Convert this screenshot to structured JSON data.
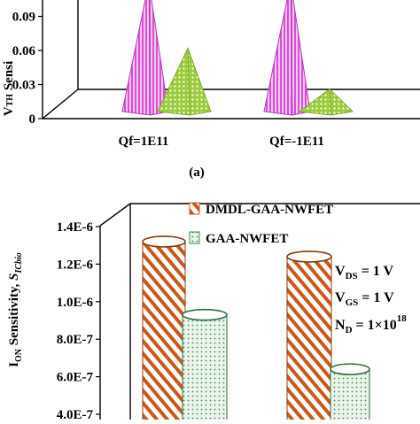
{
  "chart_data": [
    {
      "type": "bar",
      "style": "3d-pyramid",
      "panel_label": "(a)",
      "ylabel": "V_TH Sensitivity",
      "ylabel_visible_text": "V",
      "ylabel_subscript": "TH",
      "ylabel_tail": " Sensi",
      "categories": [
        "Qf=1E11",
        "Qf=-1E11"
      ],
      "yticks": [
        "0",
        "0.03",
        "0.06",
        "0.09"
      ],
      "ylim": [
        0,
        0.12
      ],
      "grid": false,
      "series": [
        {
          "color": "#d94fd6",
          "pattern": "vertical-stripes",
          "values": [
            0.12,
            0.12
          ]
        },
        {
          "color": "#9ccc3c",
          "pattern": "dots",
          "values": [
            0.062,
            0.026
          ]
        }
      ]
    },
    {
      "type": "bar",
      "style": "3d-cylinder",
      "ylabel_parts": {
        "main": "I",
        "sub": "ON",
        "mid": " Sensitivity, ",
        "italic": "S",
        "italic_sub": "ICbio"
      },
      "yticks": [
        "4.0E-7",
        "6.0E-7",
        "8.0E-7",
        "1.0E-6",
        "1.2E-6",
        "1.4E-6"
      ],
      "ylim": [
        4e-07,
        1.4e-06
      ],
      "legend_position": "top-right",
      "grid": false,
      "series": [
        {
          "name": "DMDL-GAA-NWFET",
          "color": "#c8581c",
          "pattern": "diagonal-stripes",
          "values": [
            1.32e-06,
            1.24e-06
          ]
        },
        {
          "name": "GAA-NWFET",
          "color": "#3c8c50",
          "pattern": "dots",
          "values": [
            9.3e-07,
            6.4e-07
          ]
        }
      ],
      "annotations": [
        {
          "main": "V",
          "sub": "DS",
          "rest": " = 1 V"
        },
        {
          "main": "V",
          "sub": "GS",
          "rest": " = 1 V"
        },
        {
          "main": "N",
          "sub": "D",
          "rest": " = 1×10",
          "sup": "18"
        }
      ]
    }
  ]
}
